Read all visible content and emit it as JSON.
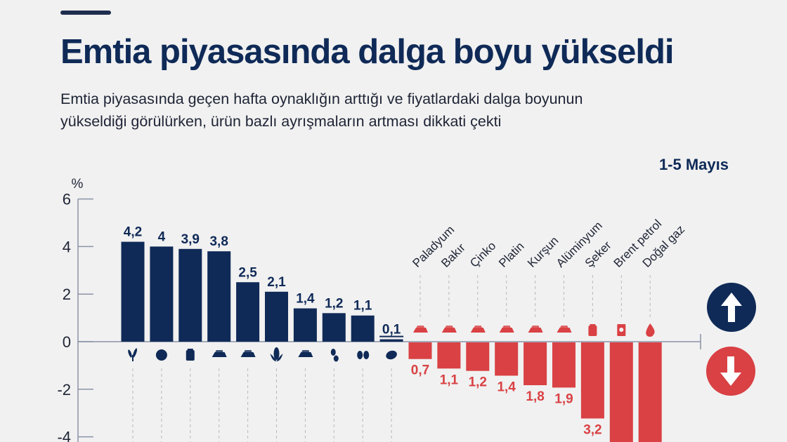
{
  "header": {
    "title": "Emtia piyasasında dalga boyu yükseldi",
    "subtitle_line1": "Emtia piyasasında geçen hafta oynaklığın arttığı ve fiyatlardaki dalga boyunun",
    "subtitle_line2": "yükseldiği görülürken, ürün bazlı ayrışmaların artması dikkati çekti",
    "date": "1-5 Mayıs"
  },
  "colors": {
    "positive": "#0f2a57",
    "negative": "#d94144",
    "axis": "#8a93a6",
    "background": "#f1f1f1"
  },
  "legend": {
    "up": "arrow-up-icon",
    "down": "arrow-down-icon"
  },
  "chart_data": {
    "type": "bar",
    "title": "Emtia piyasasında dalga boyu yükseldi",
    "ylabel": "%",
    "xlabel": "",
    "ylim": [
      -4,
      6
    ],
    "yticks": [
      "6",
      "4",
      "2",
      "0",
      "-2",
      "-4"
    ],
    "ytick_values": [
      6,
      4,
      2,
      0,
      -2,
      -4
    ],
    "grid": false,
    "series": [
      {
        "name": "Yükselenler",
        "color": "#0f2a57",
        "categories": [
          "",
          "",
          "",
          "",
          "",
          "",
          "",
          "",
          "",
          ""
        ],
        "icons": [
          "wheat-icon",
          "cotton-icon",
          "sack-icon",
          "ingots-icon",
          "ingots-icon",
          "corn-icon",
          "ingots-icon",
          "soybean-icon",
          "coffee-icon",
          "cocoa-icon"
        ],
        "values": [
          4.2,
          4,
          3.9,
          3.8,
          2.5,
          2.1,
          1.4,
          1.2,
          1.1,
          0.1
        ],
        "labels": [
          "4,2",
          "4",
          "3,9",
          "3,8",
          "2,5",
          "2,1",
          "1,4",
          "1,2",
          "1,1",
          "0,1"
        ]
      },
      {
        "name": "Düşenler",
        "color": "#d94144",
        "categories": [
          "Paladyum",
          "Bakır",
          "Çinko",
          "Platin",
          "Kurşun",
          "Alüminyum",
          "Şeker",
          "Brent petrol",
          "Doğal gaz"
        ],
        "icons": [
          "ingots-icon",
          "ingots-icon",
          "ingots-icon",
          "ingots-icon",
          "ingots-icon",
          "ingots-icon",
          "sugar-bag-icon",
          "oil-barrel-icon",
          "flame-icon"
        ],
        "values": [
          -0.7,
          -1.1,
          -1.2,
          -1.4,
          -1.8,
          -1.9,
          -3.2,
          -4.5,
          -4.5
        ],
        "labels": [
          "0,7",
          "1,1",
          "1,2",
          "1,4",
          "1,8",
          "1,9",
          "3,2",
          "",
          ""
        ]
      }
    ]
  }
}
